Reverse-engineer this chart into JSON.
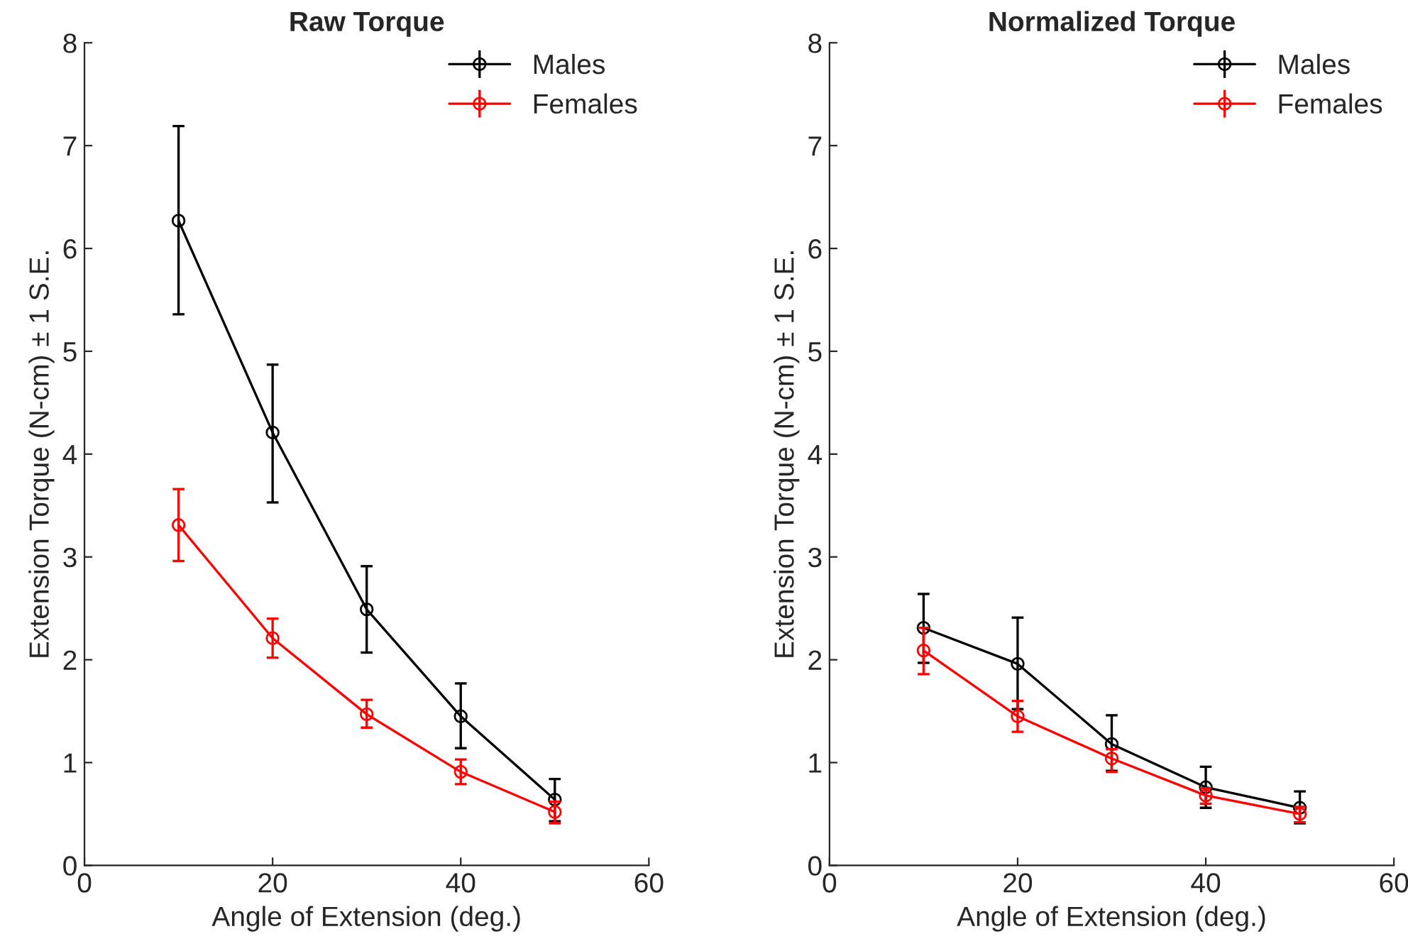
{
  "chart_data": [
    {
      "type": "line",
      "title": "Raw Torque",
      "xlabel": "Angle of Extension (deg.)",
      "ylabel": "Extension Torque (N-cm) ± 1 S.E.",
      "x": [
        10,
        20,
        30,
        40,
        50
      ],
      "xlim": [
        0,
        60
      ],
      "xticks": [
        0,
        20,
        40,
        60
      ],
      "ylim": [
        0,
        8
      ],
      "yticks": [
        0,
        1,
        2,
        3,
        4,
        5,
        6,
        7,
        8
      ],
      "marker": "circle",
      "line_style": "solid",
      "legend": "top right",
      "grid": false,
      "series": [
        {
          "name": "Males",
          "color": "#000000",
          "values": [
            6.27,
            4.21,
            2.49,
            1.45,
            0.64
          ],
          "errors": [
            [
              5.36,
              7.19
            ],
            [
              3.53,
              4.87
            ],
            [
              2.07,
              2.91
            ],
            [
              1.14,
              1.77
            ],
            [
              0.43,
              0.84
            ]
          ]
        },
        {
          "name": "Females",
          "color": "#ff0000",
          "values": [
            3.31,
            2.21,
            1.47,
            0.91,
            0.52
          ],
          "errors": [
            [
              2.96,
              3.66
            ],
            [
              2.02,
              2.4
            ],
            [
              1.34,
              1.61
            ],
            [
              0.79,
              1.03
            ],
            [
              0.41,
              0.62
            ]
          ]
        }
      ]
    },
    {
      "type": "line",
      "title": "Normalized Torque",
      "xlabel": "Angle of Extension (deg.)",
      "ylabel": "Extension Torque (N-cm) ± 1 S.E.",
      "x": [
        10,
        20,
        30,
        40,
        50
      ],
      "xlim": [
        0,
        60
      ],
      "xticks": [
        0,
        20,
        40,
        60
      ],
      "ylim": [
        0,
        8
      ],
      "yticks": [
        0,
        1,
        2,
        3,
        4,
        5,
        6,
        7,
        8
      ],
      "marker": "circle",
      "line_style": "solid",
      "legend": "top right",
      "grid": false,
      "series": [
        {
          "name": "Males",
          "color": "#000000",
          "values": [
            2.31,
            1.96,
            1.18,
            0.76,
            0.56
          ],
          "errors": [
            [
              1.97,
              2.64
            ],
            [
              1.52,
              2.41
            ],
            [
              0.92,
              1.46
            ],
            [
              0.56,
              0.96
            ],
            [
              0.41,
              0.72
            ]
          ]
        },
        {
          "name": "Females",
          "color": "#ff0000",
          "values": [
            2.09,
            1.45,
            1.04,
            0.68,
            0.5
          ],
          "errors": [
            [
              1.86,
              2.31
            ],
            [
              1.3,
              1.6
            ],
            [
              0.91,
              1.13
            ],
            [
              0.6,
              0.75
            ],
            [
              0.42,
              0.57
            ]
          ]
        }
      ]
    }
  ]
}
